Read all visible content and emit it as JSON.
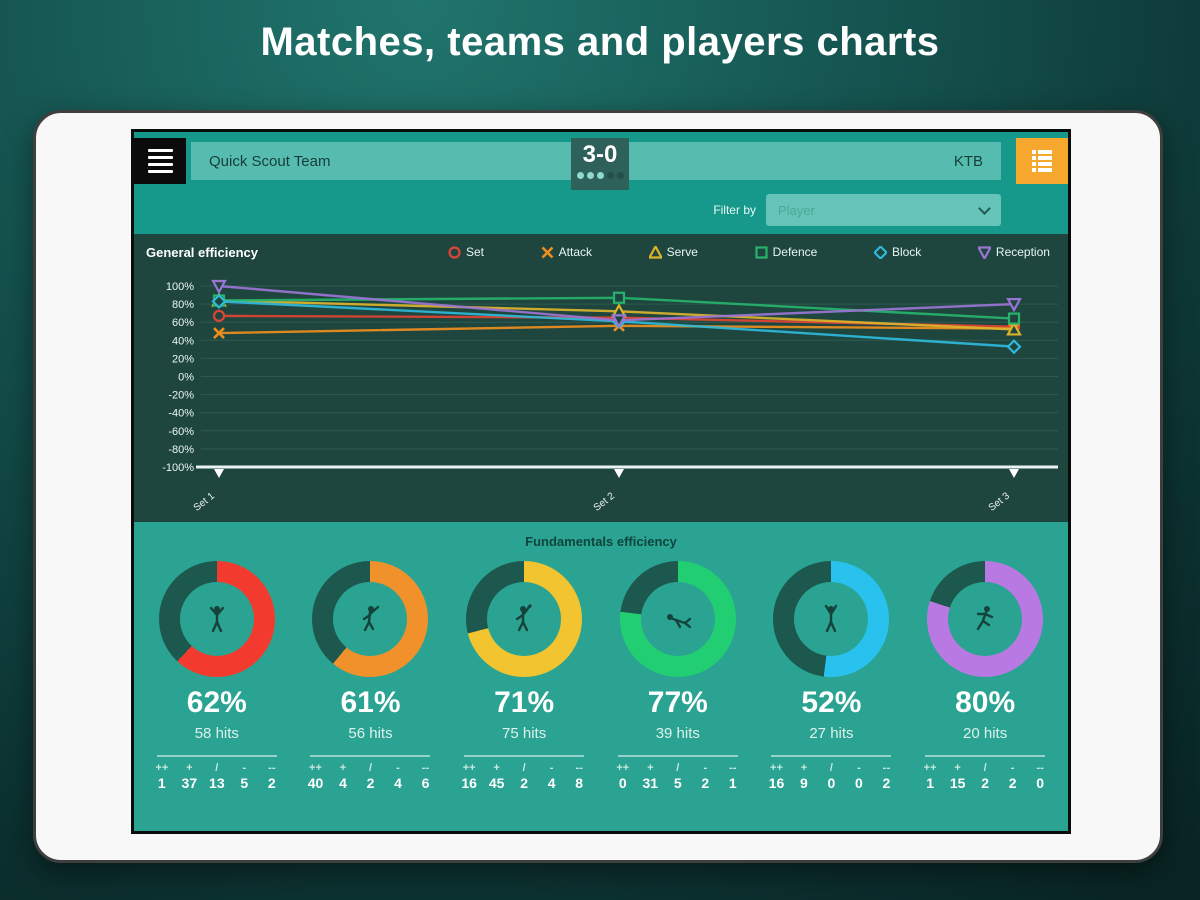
{
  "page": {
    "title": "Matches, teams and players charts"
  },
  "app": {
    "header": {
      "home_team": "Quick Scout Team",
      "away_team": "KTB",
      "score": "3-0",
      "sets_dots_filled": 3,
      "sets_dots_total": 5
    },
    "filter": {
      "label": "Filter by",
      "value": "Player"
    }
  },
  "chart_data": [
    {
      "type": "line",
      "title": "General efficiency",
      "categories": [
        "Set 1",
        "Set 2",
        "Set 3"
      ],
      "ylabel": "",
      "ylim": [
        -100,
        100
      ],
      "ytick_step": 20,
      "ytick_suffix": "%",
      "grid": true,
      "legend_position": "top",
      "series": [
        {
          "name": "Set",
          "marker": "circle",
          "color": "#e04434",
          "values": [
            67,
            65,
            55
          ]
        },
        {
          "name": "Attack",
          "marker": "x",
          "color": "#ef8e1e",
          "values": [
            48,
            56,
            53
          ]
        },
        {
          "name": "Serve",
          "marker": "triangle-up",
          "color": "#dcb42c",
          "values": [
            84,
            72,
            52
          ]
        },
        {
          "name": "Defence",
          "marker": "square",
          "color": "#27b36b",
          "values": [
            84,
            87,
            64
          ]
        },
        {
          "name": "Block",
          "marker": "diamond",
          "color": "#2fb9da",
          "values": [
            83,
            61,
            33
          ]
        },
        {
          "name": "Reception",
          "marker": "triangle-down",
          "color": "#9b74d4",
          "values": [
            100,
            62,
            80
          ]
        }
      ]
    },
    {
      "type": "donut-grid",
      "title": "Fundamentals efficiency",
      "stat_symbols": [
        "++",
        "+",
        "/",
        "-",
        "--"
      ],
      "empty_color": "#1c584e",
      "donuts": [
        {
          "name": "set",
          "pct": 62,
          "hits": "58 hits",
          "color": "#f23b2e",
          "stats": [
            1,
            37,
            13,
            5,
            2
          ]
        },
        {
          "name": "attack",
          "pct": 61,
          "hits": "56 hits",
          "color": "#f0912b",
          "stats": [
            40,
            4,
            2,
            4,
            6
          ]
        },
        {
          "name": "serve",
          "pct": 71,
          "hits": "75 hits",
          "color": "#f2c430",
          "stats": [
            16,
            45,
            2,
            4,
            8
          ]
        },
        {
          "name": "defence",
          "pct": 77,
          "hits": "39 hits",
          "color": "#21cf72",
          "stats": [
            0,
            31,
            5,
            2,
            1
          ]
        },
        {
          "name": "block",
          "pct": 52,
          "hits": "27 hits",
          "color": "#29c2ef",
          "stats": [
            16,
            9,
            0,
            0,
            2
          ]
        },
        {
          "name": "reception",
          "pct": 80,
          "hits": "20 hits",
          "color": "#b879e2",
          "stats": [
            1,
            15,
            2,
            2,
            0
          ]
        }
      ]
    }
  ]
}
